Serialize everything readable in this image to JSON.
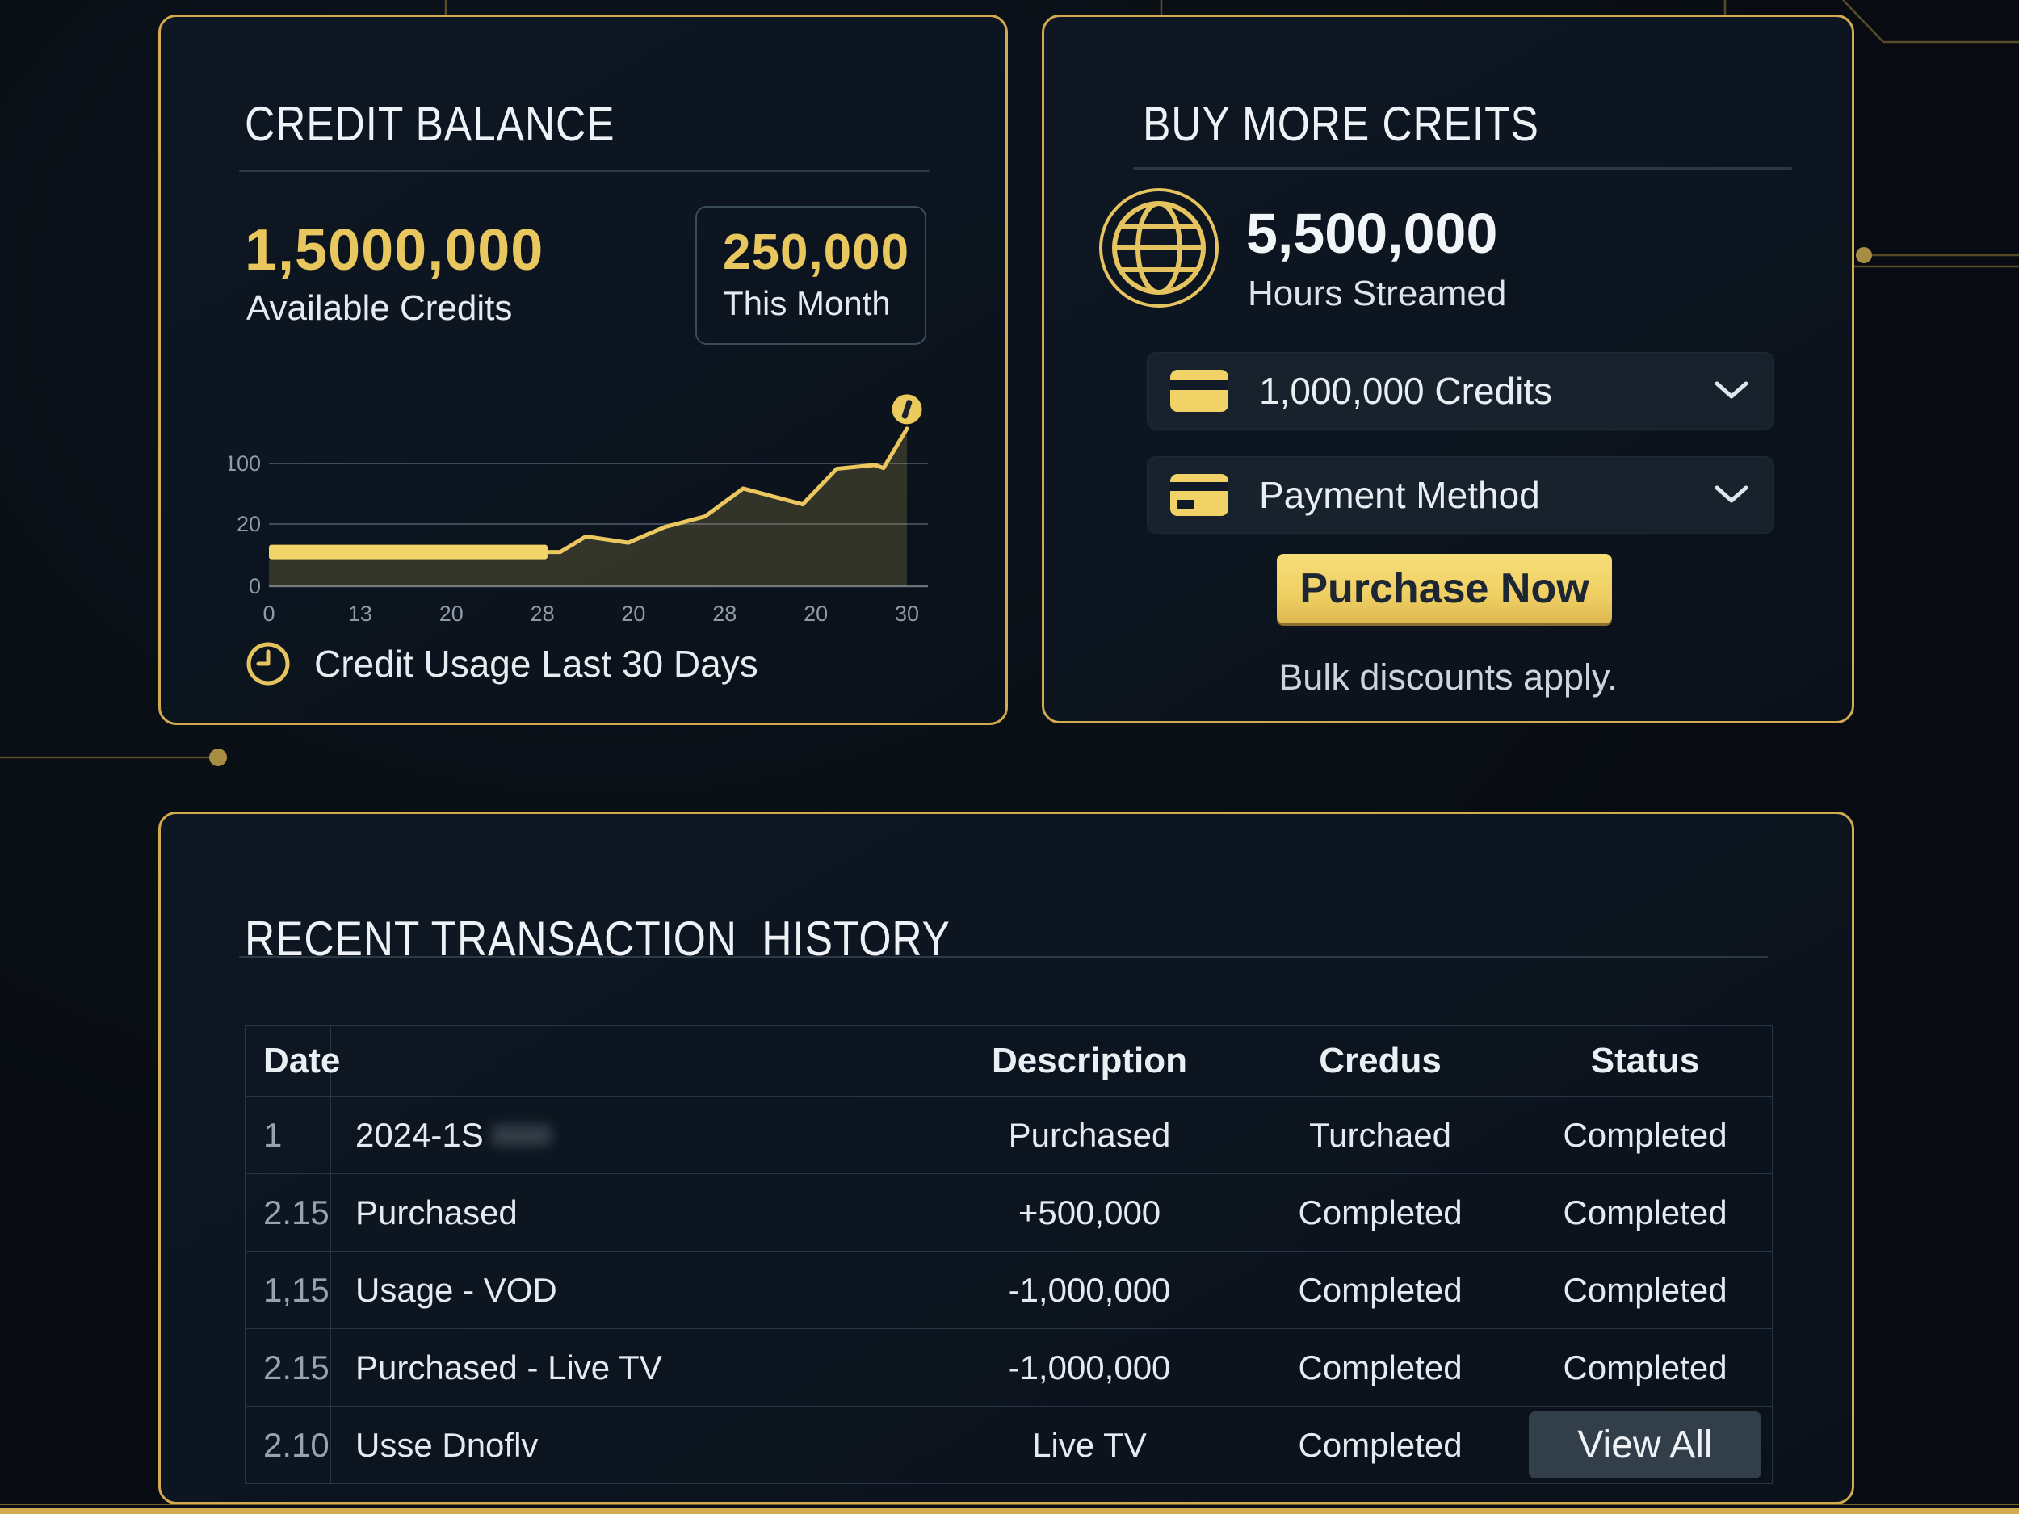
{
  "theme": {
    "background": "#0a0f16",
    "card_background": "#0d1621",
    "card_border_gold": "#d2aa4f",
    "accent_gold": "#e9c75f",
    "button_gold": "#efcf63",
    "text_primary": "#e8edf2",
    "text_muted": "#96a2ad",
    "divider": "#2b3947"
  },
  "credit_balance_card": {
    "title": "CREDIT BALANCE",
    "available_credits_value": "1,5000,000",
    "available_credits_label": "Available Credits",
    "this_month_value": "250,000",
    "this_month_label": "This Month",
    "caption": "Credit Usage Last 30 Days",
    "icons": [
      "clock-icon",
      "coin-icon"
    ]
  },
  "chart_data": {
    "type": "area",
    "title": "Credit Usage Last 30 Days",
    "x_range": [
      0,
      30
    ],
    "x_tick_labels": [
      "0",
      "13",
      "20",
      "28",
      "20",
      "28",
      "20",
      "30"
    ],
    "y_ticks": [
      0,
      20,
      100
    ],
    "y_tick_labels": [
      "0",
      "20",
      "100"
    ],
    "grid": true,
    "legend": "none",
    "bar_segment": {
      "from_x": 0,
      "to_x": 13.1,
      "value": 11
    },
    "line_points": [
      [
        13.1,
        11
      ],
      [
        13.7,
        11
      ],
      [
        14.9,
        16
      ],
      [
        16.9,
        14
      ],
      [
        18.6,
        19
      ],
      [
        20.5,
        30
      ],
      [
        20.7,
        34
      ],
      [
        22.3,
        67
      ],
      [
        25.1,
        46
      ],
      [
        26.7,
        93
      ],
      [
        28.5,
        98
      ],
      [
        28.9,
        94
      ],
      [
        30,
        146
      ]
    ],
    "peak_marker": {
      "x": 30,
      "value": 146,
      "icon": "coin-icon"
    },
    "line_color": "#ecc75f",
    "fill_color": "rgba(212,186,92,0.20)",
    "bar_color": "#f2d469",
    "grid_color": "rgba(150,165,180,0.38)"
  },
  "buy_credits_card": {
    "title": "BUY MORE CREITS",
    "hours_value": "5,500,000",
    "hours_label": "Hours Streamed",
    "globe_icon": "globe-icon",
    "credits_select": {
      "value": "1,000,000 Credits",
      "icon": "credit-card-icon"
    },
    "payment_select": {
      "value": "Payment Method",
      "icon": "credit-card-icon"
    },
    "purchase_button_label": "Purchase Now",
    "note": "Bulk discounts apply."
  },
  "transactions_card": {
    "title": "RECENT TRANSACTION  HISTORY",
    "columns": [
      "Date",
      "",
      "Description",
      "Credus",
      "Status"
    ],
    "rows": [
      {
        "date": "1",
        "desc": "2024-1S",
        "value": "Purchased",
        "credus": "Turchaed",
        "status": "Completed"
      },
      {
        "date": "2.15",
        "desc": "Purchased",
        "value": "+500,000",
        "credus": "Completed",
        "status": "Completed"
      },
      {
        "date": "1,15",
        "desc": "Usage - VOD",
        "value": "-1,000,000",
        "credus": "Completed",
        "status": "Completed"
      },
      {
        "date": "2.15",
        "desc": "Purchased - Live TV",
        "value": "-1,000,000",
        "credus": "Completed",
        "status": "Completed"
      },
      {
        "date": "2.10",
        "desc": "Usse Dnoflv",
        "value": "Live TV",
        "credus": "Completed",
        "status": ""
      }
    ],
    "view_all_button": "View All"
  }
}
